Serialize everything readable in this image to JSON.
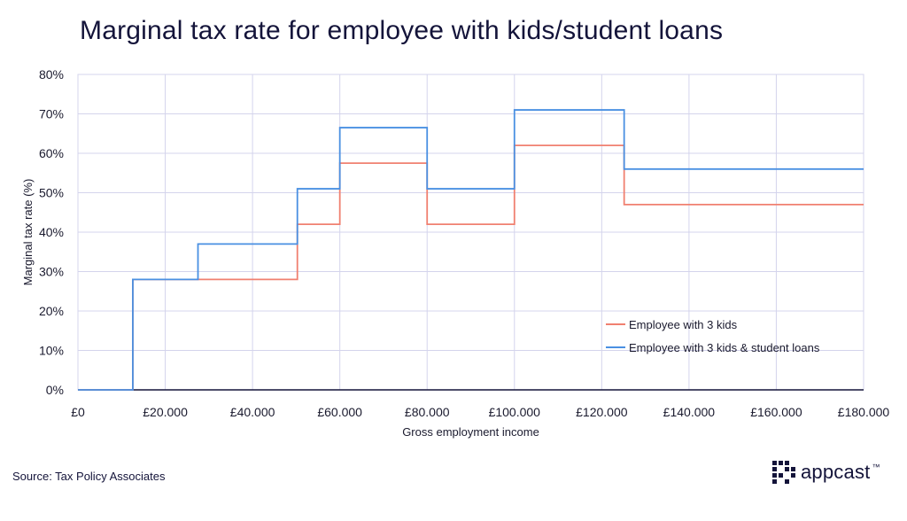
{
  "header": {
    "title": "Marginal tax rate for employee with kids/student loans"
  },
  "footer": {
    "source": "Source: Tax Policy Associates",
    "logo_text": "appcast",
    "logo_tm": "™"
  },
  "colors": {
    "series1": "#f08070",
    "series2": "#4a90e2",
    "grid": "#d4d4ec",
    "axis": "#14143a"
  },
  "chart_data": {
    "type": "line",
    "title": "Marginal tax rate for employee with kids/student loans",
    "xlabel": "Gross employment income",
    "ylabel": "Marginal tax rate (%)",
    "xlim": [
      0,
      180000
    ],
    "ylim": [
      0,
      80
    ],
    "x_ticks": [
      0,
      20000,
      40000,
      60000,
      80000,
      100000,
      120000,
      140000,
      160000,
      180000
    ],
    "x_tick_labels": [
      "£0",
      "£20.000",
      "£40.000",
      "£60.000",
      "£80.000",
      "£100.000",
      "£120.000",
      "£140.000",
      "£160.000",
      "£180.000"
    ],
    "y_ticks": [
      0,
      10,
      20,
      30,
      40,
      50,
      60,
      70,
      80
    ],
    "y_tick_labels": [
      "0%",
      "10%",
      "20%",
      "30%",
      "40%",
      "50%",
      "60%",
      "70%",
      "80%"
    ],
    "grid": true,
    "legend_position": "bottom-right",
    "series": [
      {
        "name": "Employee with 3 kids",
        "step": true,
        "x": [
          0,
          12570,
          27500,
          50270,
          60000,
          80000,
          100000,
          125140,
          180000
        ],
        "y": [
          0,
          28,
          28,
          42,
          57.5,
          42,
          62,
          47,
          47
        ]
      },
      {
        "name": "Employee with 3 kids & student loans",
        "step": true,
        "x": [
          0,
          12570,
          27500,
          50270,
          60000,
          80000,
          100000,
          125140,
          180000
        ],
        "y": [
          0,
          28,
          37,
          51,
          66.5,
          51,
          71,
          56,
          56
        ]
      }
    ]
  }
}
